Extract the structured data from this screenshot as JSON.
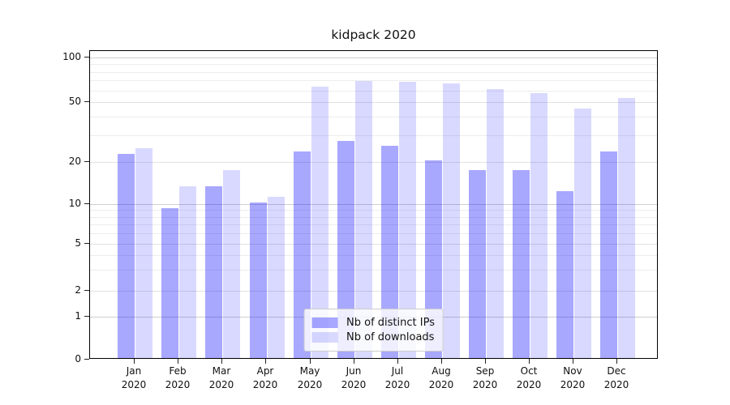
{
  "title": "kidpack 2020",
  "legend": {
    "items": [
      {
        "label": "Nb of distinct IPs",
        "color": "rgba(0,0,255,0.34)"
      },
      {
        "label": "Nb of downloads",
        "color": "rgba(0,0,255,0.15)"
      }
    ],
    "position": "lower center"
  },
  "axes": {
    "ytick_labels": [
      "100",
      "50",
      "20",
      "10",
      "5",
      "2",
      "1",
      "0"
    ],
    "xtick_labels_line1": [
      "Jan",
      "Feb",
      "Mar",
      "Apr",
      "May",
      "Jun",
      "Jul",
      "Aug",
      "Sep",
      "Oct",
      "Nov",
      "Dec"
    ],
    "xtick_labels_line2": "2020"
  },
  "chart_data": {
    "type": "bar",
    "title": "kidpack 2020",
    "categories": [
      "Jan 2020",
      "Feb 2020",
      "Mar 2020",
      "Apr 2020",
      "May 2020",
      "Jun 2020",
      "Jul 2020",
      "Aug 2020",
      "Sep 2020",
      "Oct 2020",
      "Nov 2020",
      "Dec 2020"
    ],
    "series": [
      {
        "name": "Nb of distinct IPs",
        "color": "rgba(0,0,255,0.34)",
        "values": [
          22,
          9,
          13,
          10,
          23,
          27,
          25,
          20,
          17,
          17,
          12,
          23
        ]
      },
      {
        "name": "Nb of downloads",
        "color": "rgba(0,0,255,0.15)",
        "values": [
          24,
          13,
          17,
          11,
          62,
          68,
          67,
          65,
          60,
          56,
          44,
          52
        ]
      }
    ],
    "xlabel": "",
    "ylabel": "",
    "yticks": [
      0,
      1,
      2,
      5,
      10,
      20,
      50,
      100
    ],
    "ylim": [
      0,
      115
    ],
    "yscale": "log-like (compressed near zero; labeled ticks 0,1,2,5,10,20,50,100)",
    "grid": "horizontal, major and log-minor lines",
    "legend_position": "lower center"
  }
}
